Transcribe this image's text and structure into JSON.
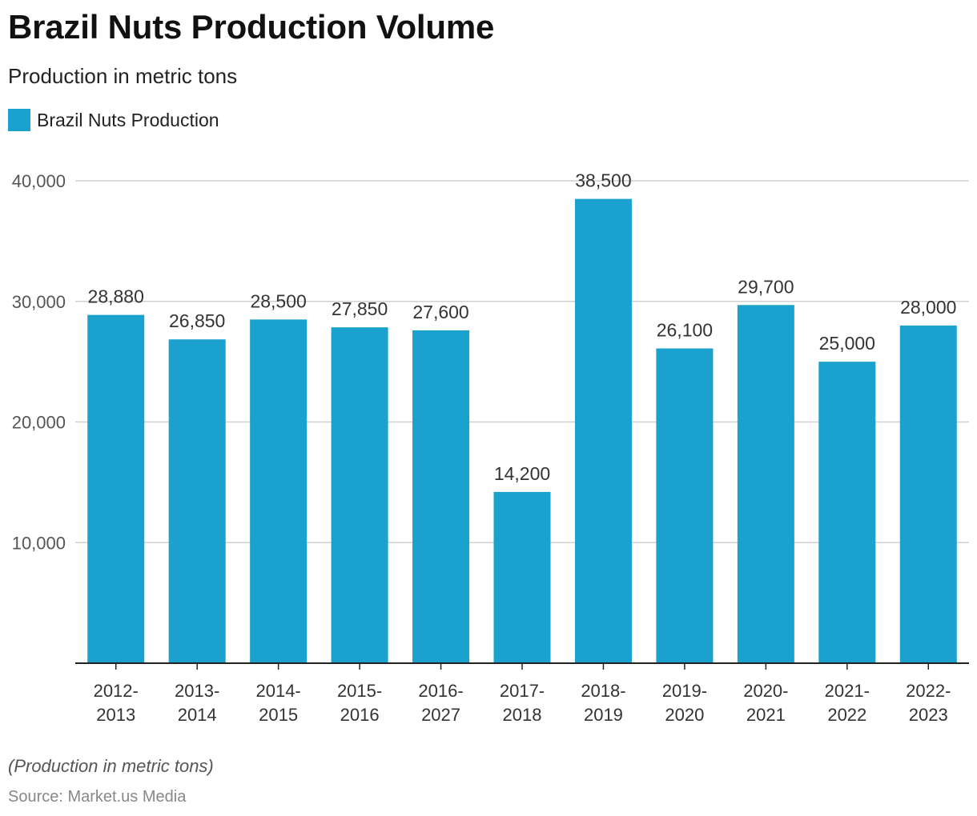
{
  "header": {
    "title": "Brazil Nuts Production Volume",
    "subtitle": "Production in metric tons"
  },
  "legend": {
    "label": "Brazil Nuts Production",
    "placement": "top-left"
  },
  "footer": {
    "note": "(Production in metric tons)",
    "source": "Source: Market.us Media"
  },
  "colors": {
    "bar": "#1aa1cd",
    "grid": "#d0d0d0",
    "axis": "#222222",
    "tick_text": "#555555",
    "label_text": "#333333"
  },
  "chart_data": {
    "type": "bar",
    "title": "Brazil Nuts Production Volume",
    "subtitle": "Production in metric tons",
    "xlabel": "",
    "ylabel": "",
    "ylim": [
      0,
      40000
    ],
    "yticks": [
      10000,
      20000,
      30000,
      40000
    ],
    "ytick_labels": [
      "10,000",
      "20,000",
      "30,000",
      "40,000"
    ],
    "grid": true,
    "categories": [
      [
        "2012-",
        "2013"
      ],
      [
        "2013-",
        "2014"
      ],
      [
        "2014-",
        "2015"
      ],
      [
        "2015-",
        "2016"
      ],
      [
        "2016-",
        "2027"
      ],
      [
        "2017-",
        "2018"
      ],
      [
        "2018-",
        "2019"
      ],
      [
        "2019-",
        "2020"
      ],
      [
        "2020-",
        "2021"
      ],
      [
        "2021-",
        "2022"
      ],
      [
        "2022-",
        "2023"
      ]
    ],
    "series": [
      {
        "name": "Brazil Nuts Production",
        "values": [
          28880,
          26850,
          28500,
          27850,
          27600,
          14200,
          38500,
          26100,
          29700,
          25000,
          28000
        ],
        "value_labels": [
          "28,880",
          "26,850",
          "28,500",
          "27,850",
          "27,600",
          "14,200",
          "38,500",
          "26,100",
          "29,700",
          "25,000",
          "28,000"
        ]
      }
    ]
  }
}
